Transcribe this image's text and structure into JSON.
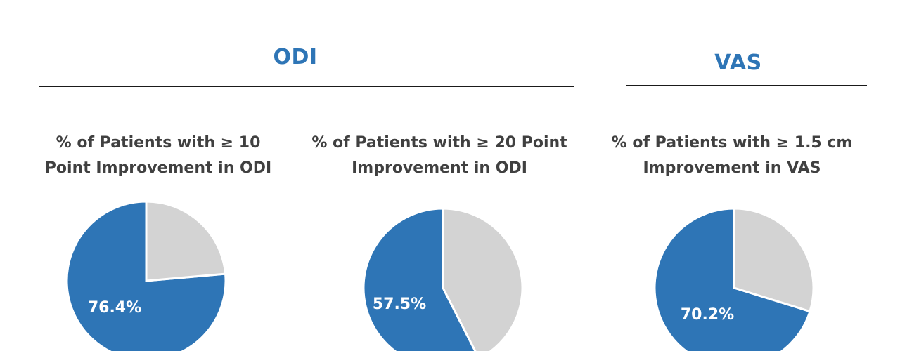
{
  "colors": {
    "title": "#2E75B6",
    "primary": "#2E75B6",
    "remainder": "#D3D3D3",
    "rule": "#1a1a1a",
    "chart_title": "#404040"
  },
  "groups": [
    {
      "title": "ODI"
    },
    {
      "title": "VAS"
    }
  ],
  "chart_data": [
    {
      "type": "pie",
      "title_line1": "% of Patients with ≥ 10",
      "title_line2": "Point Improvement in ODI",
      "slices": [
        {
          "value": 76.4
        },
        {
          "value": 23.6
        }
      ],
      "label": "76.4%"
    },
    {
      "type": "pie",
      "title_line1": "% of Patients with ≥ 20 Point",
      "title_line2": "Improvement in ODI",
      "slices": [
        {
          "value": 57.5
        },
        {
          "value": 42.5
        }
      ],
      "label": "57.5%"
    },
    {
      "type": "pie",
      "title_line1": "% of Patients with ≥ 1.5 cm",
      "title_line2": "Improvement in VAS",
      "slices": [
        {
          "value": 70.2
        },
        {
          "value": 29.8
        }
      ],
      "label": "70.2%"
    }
  ]
}
